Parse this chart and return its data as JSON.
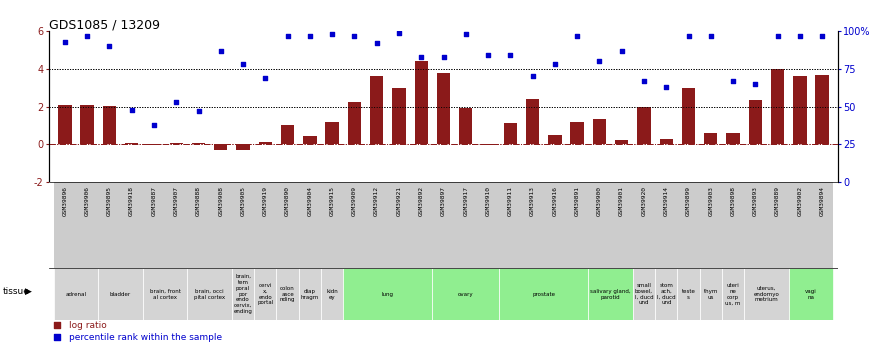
{
  "title": "GDS1085 / 13209",
  "samples": [
    "GSM39896",
    "GSM39906",
    "GSM39895",
    "GSM39918",
    "GSM39887",
    "GSM39907",
    "GSM39888",
    "GSM39908",
    "GSM39905",
    "GSM39919",
    "GSM39890",
    "GSM39904",
    "GSM39915",
    "GSM39909",
    "GSM39912",
    "GSM39921",
    "GSM39892",
    "GSM39897",
    "GSM39917",
    "GSM39910",
    "GSM39911",
    "GSM39913",
    "GSM39916",
    "GSM39891",
    "GSM39900",
    "GSM39901",
    "GSM39920",
    "GSM39914",
    "GSM39899",
    "GSM39903",
    "GSM39898",
    "GSM39893",
    "GSM39889",
    "GSM39902",
    "GSM39894"
  ],
  "log_ratio": [
    2.1,
    2.1,
    2.05,
    0.05,
    -0.05,
    0.05,
    0.05,
    -0.28,
    -0.28,
    0.1,
    1.0,
    0.45,
    1.2,
    2.25,
    3.6,
    3.0,
    4.4,
    3.8,
    1.9,
    -0.05,
    1.1,
    2.4,
    0.5,
    1.2,
    1.35,
    0.2,
    1.95,
    0.3,
    3.0,
    0.6,
    0.6,
    2.35,
    4.0,
    3.6,
    3.65
  ],
  "percentile_rank": [
    93,
    97,
    90,
    48,
    38,
    53,
    47,
    87,
    78,
    69,
    97,
    97,
    98,
    97,
    92,
    99,
    83,
    83,
    98,
    84,
    84,
    70,
    78,
    97,
    80,
    87,
    67,
    63,
    97,
    97,
    67,
    65,
    97,
    97,
    97
  ],
  "bar_color": "#8b1a1a",
  "dot_color": "#0000cd",
  "ylim_left": [
    -2,
    6
  ],
  "ylim_right": [
    0,
    100
  ],
  "yticks_left": [
    -2,
    0,
    2,
    4,
    6
  ],
  "yticks_right": [
    0,
    25,
    50,
    75,
    100
  ],
  "tissue_bands": [
    {
      "label": "adrenal",
      "color": "#d4d4d4",
      "start": 0,
      "end": 2
    },
    {
      "label": "bladder",
      "color": "#d4d4d4",
      "start": 2,
      "end": 4
    },
    {
      "label": "brain, front\nal cortex",
      "color": "#d4d4d4",
      "start": 4,
      "end": 6
    },
    {
      "label": "brain, occi\npital cortex",
      "color": "#d4d4d4",
      "start": 6,
      "end": 8
    },
    {
      "label": "brain,\ntem\nporal\npor\nendo\ncervix,\nending",
      "color": "#d4d4d4",
      "start": 8,
      "end": 9
    },
    {
      "label": "cervi\nx,\nendo\nportal",
      "color": "#d4d4d4",
      "start": 9,
      "end": 10
    },
    {
      "label": "colon\nasce\nnding",
      "color": "#d4d4d4",
      "start": 10,
      "end": 11
    },
    {
      "label": "diap\nhragm",
      "color": "#d4d4d4",
      "start": 11,
      "end": 12
    },
    {
      "label": "kidn\ney",
      "color": "#d4d4d4",
      "start": 12,
      "end": 13
    },
    {
      "label": "lung",
      "color": "#90ee90",
      "start": 13,
      "end": 17
    },
    {
      "label": "ovary",
      "color": "#90ee90",
      "start": 17,
      "end": 20
    },
    {
      "label": "prostate",
      "color": "#90ee90",
      "start": 20,
      "end": 24
    },
    {
      "label": "salivary gland,\nparotid",
      "color": "#90ee90",
      "start": 24,
      "end": 26
    },
    {
      "label": "small\nbowel,\nI, ducd\nund",
      "color": "#d4d4d4",
      "start": 26,
      "end": 27
    },
    {
      "label": "stom\nach,\nI, ducd\nund",
      "color": "#d4d4d4",
      "start": 27,
      "end": 28
    },
    {
      "label": "teste\ns",
      "color": "#d4d4d4",
      "start": 28,
      "end": 29
    },
    {
      "label": "thym\nus",
      "color": "#d4d4d4",
      "start": 29,
      "end": 30
    },
    {
      "label": "uteri\nne\ncorp\nus, m",
      "color": "#d4d4d4",
      "start": 30,
      "end": 31
    },
    {
      "label": "uterus,\nendomyo\nmetrium",
      "color": "#d4d4d4",
      "start": 31,
      "end": 33
    },
    {
      "label": "vagi\nna",
      "color": "#90ee90",
      "start": 33,
      "end": 35
    }
  ]
}
